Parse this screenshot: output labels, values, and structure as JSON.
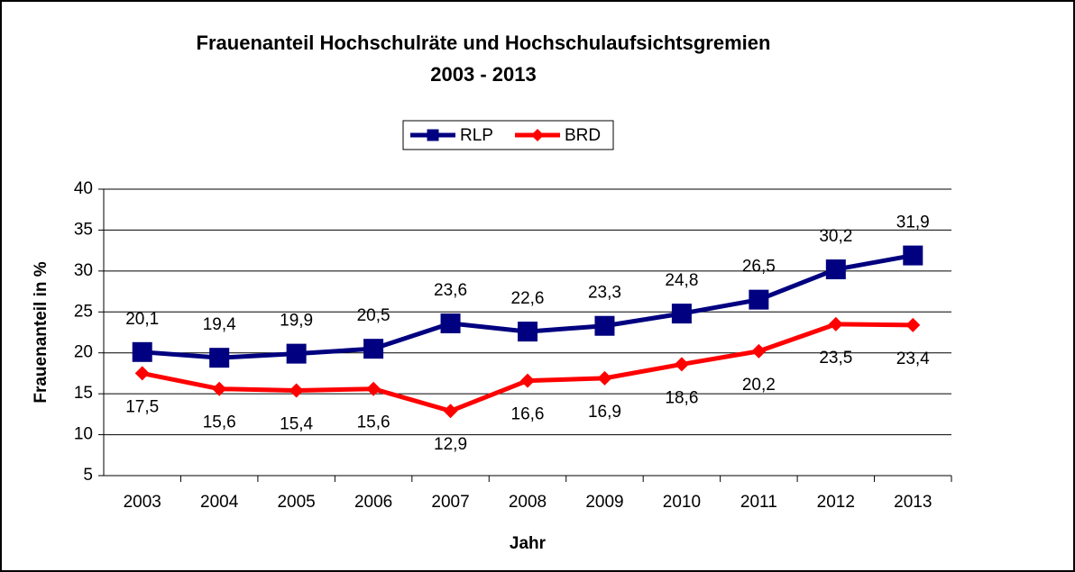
{
  "chart_data": {
    "type": "line",
    "title": [
      "Frauenanteil Hochschulräte und Hochschulaufsichtsgremien",
      "2003 - 2013"
    ],
    "x_label": "Jahr",
    "y_label": "Frauenanteil in %",
    "categories": [
      "2003",
      "2004",
      "2005",
      "2006",
      "2007",
      "2008",
      "2009",
      "2010",
      "2011",
      "2012",
      "2013"
    ],
    "series": [
      {
        "name": "RLP",
        "color": "#000080",
        "marker": "square",
        "values": [
          20.1,
          19.4,
          19.9,
          20.5,
          23.6,
          22.6,
          23.3,
          24.8,
          26.5,
          30.2,
          31.9
        ],
        "value_labels": [
          "20,1",
          "19,4",
          "19,9",
          "20,5",
          "23,6",
          "22,6",
          "23,3",
          "24,8",
          "26,5",
          "30,2",
          "31,9"
        ]
      },
      {
        "name": "BRD",
        "color": "#ff0000",
        "marker": "diamond",
        "values": [
          17.5,
          15.6,
          15.4,
          15.6,
          12.9,
          16.6,
          16.9,
          18.6,
          20.2,
          23.5,
          23.4
        ],
        "value_labels": [
          "17,5",
          "15,6",
          "15,4",
          "15,6",
          "12,9",
          "16,6",
          "16,9",
          "18,6",
          "20,2",
          "23,5",
          "23,4"
        ]
      }
    ],
    "ylim": [
      5,
      40
    ],
    "yticks": [
      5,
      10,
      15,
      20,
      25,
      30,
      35,
      40
    ],
    "grid": true,
    "legend": "top"
  }
}
